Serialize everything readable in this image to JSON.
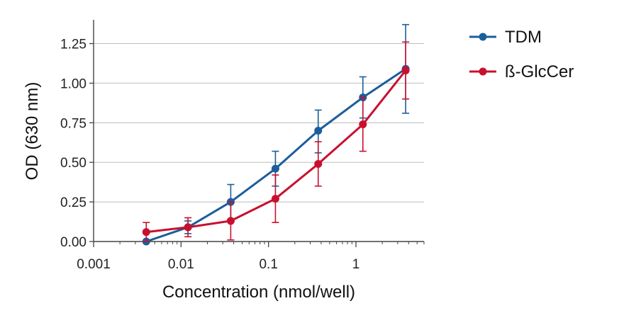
{
  "chart_data": {
    "type": "line",
    "title": "",
    "xlabel": "Concentration (nmol/well)",
    "ylabel": "OD (630 nm)",
    "xscale": "log",
    "xlim": [
      0.001,
      6
    ],
    "ylim": [
      0,
      1.4
    ],
    "x_ticks": [
      0.001,
      0.01,
      0.1,
      1
    ],
    "x_tick_labels": [
      "0.001",
      "0.01",
      "0.1",
      "1"
    ],
    "y_ticks": [
      0,
      0.25,
      0.5,
      0.75,
      1.0,
      1.25
    ],
    "y_tick_labels": [
      "0.00",
      "0.25",
      "0.50",
      "0.75",
      "1.00",
      "1.25"
    ],
    "grid": "horizontal",
    "legend": "top-right",
    "series": [
      {
        "name": "TDM",
        "color": "#1b5e9b",
        "x": [
          0.004,
          0.012,
          0.037,
          0.12,
          0.37,
          1.2,
          3.7
        ],
        "y": [
          0.0,
          0.09,
          0.25,
          0.46,
          0.7,
          0.91,
          1.09
        ],
        "err_low": [
          0.0,
          0.04,
          0.11,
          0.11,
          0.14,
          0.13,
          0.28
        ],
        "err_high": [
          0.0,
          0.04,
          0.11,
          0.11,
          0.13,
          0.13,
          0.28
        ]
      },
      {
        "name": "ß-GlcCer",
        "color": "#c8102e",
        "x": [
          0.004,
          0.012,
          0.037,
          0.12,
          0.37,
          1.2,
          3.7
        ],
        "y": [
          0.06,
          0.09,
          0.13,
          0.27,
          0.49,
          0.74,
          1.08
        ],
        "err_low": [
          0.06,
          0.06,
          0.12,
          0.15,
          0.14,
          0.17,
          0.18
        ],
        "err_high": [
          0.06,
          0.06,
          0.12,
          0.15,
          0.14,
          0.17,
          0.18
        ]
      }
    ]
  }
}
